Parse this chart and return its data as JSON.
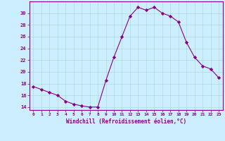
{
  "x": [
    0,
    1,
    2,
    3,
    4,
    5,
    6,
    7,
    8,
    9,
    10,
    11,
    12,
    13,
    14,
    15,
    16,
    17,
    18,
    19,
    20,
    21,
    22,
    23
  ],
  "y": [
    17.5,
    17.0,
    16.5,
    16.0,
    15.0,
    14.5,
    14.2,
    14.0,
    14.0,
    18.5,
    22.5,
    26.0,
    29.5,
    31.0,
    30.5,
    31.0,
    30.0,
    29.5,
    28.5,
    25.0,
    22.5,
    21.0,
    20.5,
    19.0
  ],
  "line_color": "#880088",
  "marker": "D",
  "marker_size": 2.2,
  "bg_color": "#cceeff",
  "grid_color": "#aadddd",
  "xlabel": "Windchill (Refroidissement éolien,°C)",
  "ylim": [
    13.5,
    32
  ],
  "xlim": [
    -0.5,
    23.5
  ],
  "yticks": [
    14,
    16,
    18,
    20,
    22,
    24,
    26,
    28,
    30
  ],
  "xticks": [
    0,
    1,
    2,
    3,
    4,
    5,
    6,
    7,
    8,
    9,
    10,
    11,
    12,
    13,
    14,
    15,
    16,
    17,
    18,
    19,
    20,
    21,
    22,
    23
  ],
  "xlabel_color": "#880088",
  "tick_color": "#880088",
  "axis_color": "#880088",
  "tick_fontsize": 4.5,
  "xlabel_fontsize": 5.5
}
